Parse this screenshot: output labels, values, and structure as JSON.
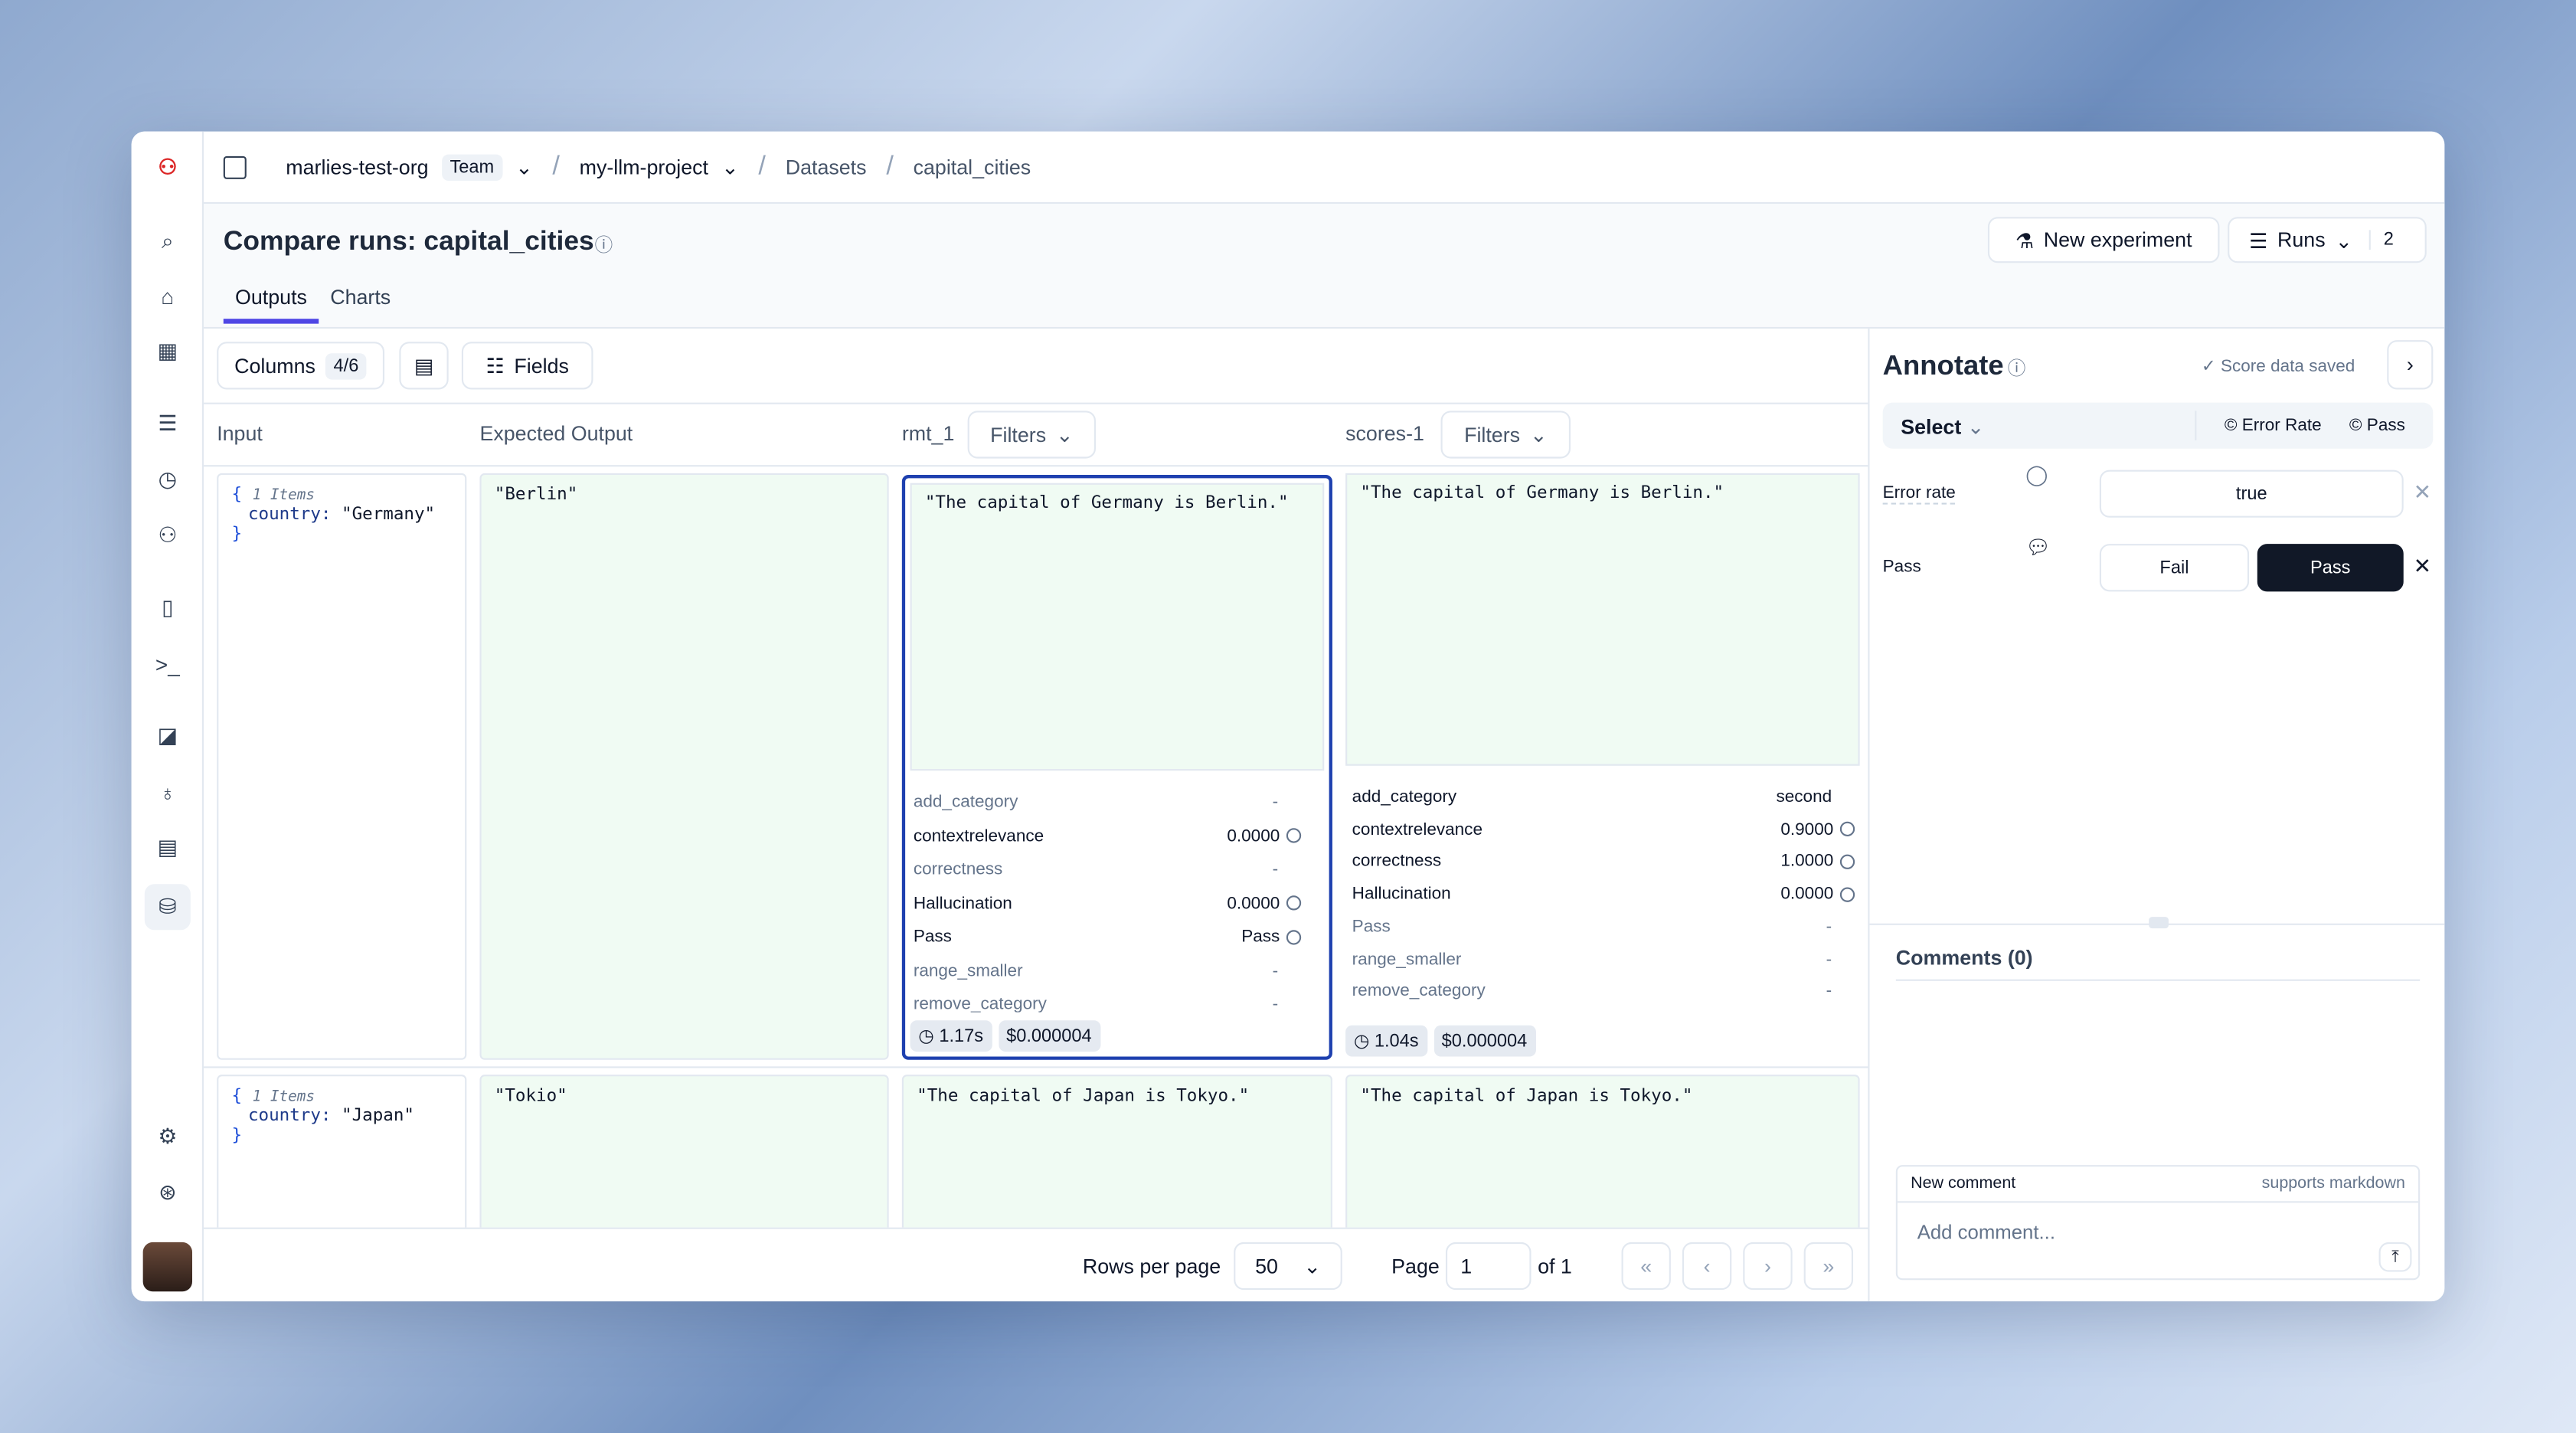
{
  "breadcrumb": {
    "org": "marlies-test-org",
    "org_badge": "Team",
    "project": "my-llm-project",
    "section": "Datasets",
    "dataset": "capital_cities"
  },
  "page": {
    "title": "Compare runs: capital_cities",
    "tabs": [
      {
        "label": "Outputs",
        "active": true
      },
      {
        "label": "Charts",
        "active": false
      }
    ],
    "new_experiment": "New experiment",
    "runs_label": "Runs",
    "runs_count": "2"
  },
  "toolbar": {
    "columns_label": "Columns",
    "columns_count": "4/6",
    "fields_label": "Fields"
  },
  "columns": {
    "input": "Input",
    "expected": "Expected Output",
    "run1": "rmt_1",
    "run2": "scores-1",
    "filters": "Filters"
  },
  "rows": [
    {
      "input_meta": "1 Items",
      "input_key": "country:",
      "input_value": "\"Germany\"",
      "expected": "\"Berlin\"",
      "run1": {
        "output": "\"The capital of Germany is Berlin.\"",
        "scores": [
          {
            "name": "add_category",
            "value": "-",
            "muted": true
          },
          {
            "name": "contextrelevance",
            "value": "0.0000",
            "comment": true
          },
          {
            "name": "correctness",
            "value": "-",
            "muted": true
          },
          {
            "name": "Hallucination",
            "value": "0.0000",
            "comment": true
          },
          {
            "name": "Pass",
            "value": "Pass",
            "comment": true
          },
          {
            "name": "range_smaller",
            "value": "-",
            "muted": true
          },
          {
            "name": "remove_category",
            "value": "-",
            "muted": true
          }
        ],
        "duration": "1.17s",
        "cost": "$0.000004"
      },
      "run2": {
        "output": "\"The capital of Germany is Berlin.\"",
        "scores": [
          {
            "name": "add_category",
            "value": "second"
          },
          {
            "name": "contextrelevance",
            "value": "0.9000",
            "comment": true
          },
          {
            "name": "correctness",
            "value": "1.0000",
            "comment": true
          },
          {
            "name": "Hallucination",
            "value": "0.0000",
            "comment": true
          },
          {
            "name": "Pass",
            "value": "-",
            "muted": true
          },
          {
            "name": "range_smaller",
            "value": "-",
            "muted": true
          },
          {
            "name": "remove_category",
            "value": "-",
            "muted": true
          }
        ],
        "duration": "1.04s",
        "cost": "$0.000004"
      }
    },
    {
      "input_meta": "1 Items",
      "input_key": "country:",
      "input_value": "\"Japan\"",
      "expected": "\"Tokio\"",
      "run1": {
        "output": "\"The capital of Japan is Tokyo.\""
      },
      "run2": {
        "output": "\"The capital of Japan is Tokyo.\""
      }
    }
  ],
  "pagination": {
    "rows_per_page_label": "Rows per page",
    "rows_per_page": "50",
    "page_label": "Page",
    "page": "1",
    "of": "of 1"
  },
  "annotate": {
    "title": "Annotate",
    "saved": "Score data saved",
    "select": "Select",
    "tags": [
      "Error Rate",
      "Pass"
    ],
    "error_rate_label": "Error rate",
    "error_rate_value": "true",
    "pass_label": "Pass",
    "fail_option": "Fail",
    "pass_option": "Pass",
    "comments_title": "Comments (0)",
    "new_comment": "New comment",
    "markdown": "supports markdown",
    "comment_placeholder": "Add comment..."
  },
  "colors": {
    "accent": "#4f46e5",
    "selected_border": "#1e40af",
    "output_bg": "#f0fbf3",
    "primary_button": "#111827"
  }
}
